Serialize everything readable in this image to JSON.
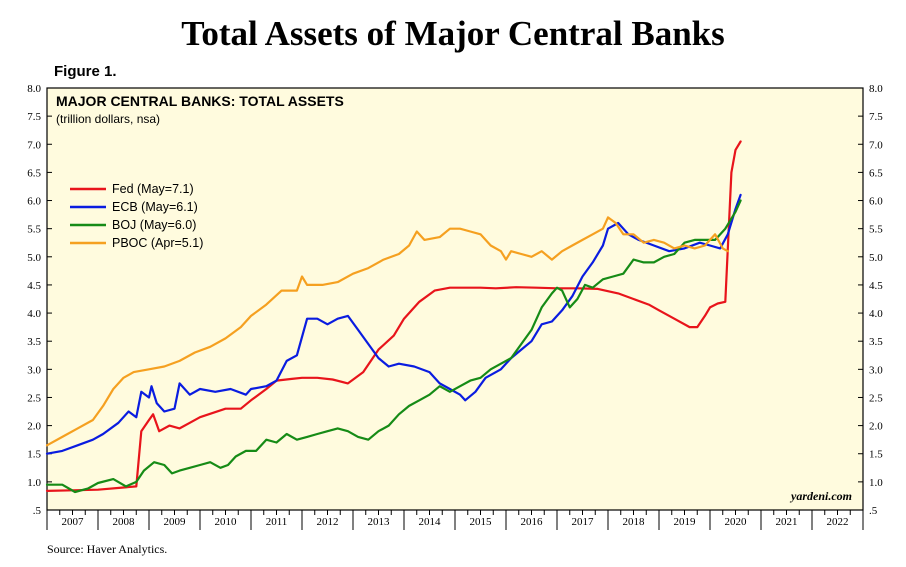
{
  "header": {
    "title": "Total Assets of Major Central Banks",
    "figure_label": "Figure 1.",
    "source": "Source: Haver Analytics."
  },
  "chart_data": {
    "type": "line",
    "title": "MAJOR CENTRAL BANKS: TOTAL ASSETS",
    "subtitle": "(trillion dollars, nsa)",
    "watermark": "yardeni.com",
    "xlabel": "",
    "ylabel": "",
    "xlim": [
      2007,
      2023
    ],
    "ylim": [
      0.5,
      8.0
    ],
    "y_ticks": [
      ".5",
      "1.0",
      "1.5",
      "2.0",
      "2.5",
      "3.0",
      "3.5",
      "4.0",
      "4.5",
      "5.0",
      "5.5",
      "6.0",
      "6.5",
      "7.0",
      "7.5",
      "8.0"
    ],
    "x_ticks": [
      "2007",
      "2008",
      "2009",
      "2010",
      "2011",
      "2012",
      "2013",
      "2014",
      "2015",
      "2016",
      "2017",
      "2018",
      "2019",
      "2020",
      "2021",
      "2022"
    ],
    "legend_position": "upper-left",
    "series": [
      {
        "name": "Fed (May=7.1)",
        "color": "#e8141b",
        "points": [
          [
            2007.0,
            0.84
          ],
          [
            2007.5,
            0.85
          ],
          [
            2008.0,
            0.86
          ],
          [
            2008.5,
            0.9
          ],
          [
            2008.75,
            0.92
          ],
          [
            2008.85,
            1.9
          ],
          [
            2009.0,
            2.1
          ],
          [
            2009.08,
            2.2
          ],
          [
            2009.2,
            1.9
          ],
          [
            2009.4,
            2.0
          ],
          [
            2009.6,
            1.95
          ],
          [
            2009.8,
            2.05
          ],
          [
            2010.0,
            2.15
          ],
          [
            2010.5,
            2.3
          ],
          [
            2010.8,
            2.3
          ],
          [
            2011.0,
            2.45
          ],
          [
            2011.3,
            2.65
          ],
          [
            2011.5,
            2.8
          ],
          [
            2011.8,
            2.83
          ],
          [
            2012.0,
            2.85
          ],
          [
            2012.3,
            2.85
          ],
          [
            2012.6,
            2.82
          ],
          [
            2012.9,
            2.75
          ],
          [
            2013.2,
            2.95
          ],
          [
            2013.5,
            3.35
          ],
          [
            2013.8,
            3.6
          ],
          [
            2014.0,
            3.9
          ],
          [
            2014.3,
            4.2
          ],
          [
            2014.6,
            4.4
          ],
          [
            2014.9,
            4.45
          ],
          [
            2015.2,
            4.45
          ],
          [
            2015.5,
            4.45
          ],
          [
            2015.8,
            4.44
          ],
          [
            2016.2,
            4.46
          ],
          [
            2016.6,
            4.45
          ],
          [
            2017.0,
            4.44
          ],
          [
            2017.4,
            4.44
          ],
          [
            2017.8,
            4.43
          ],
          [
            2018.2,
            4.35
          ],
          [
            2018.5,
            4.25
          ],
          [
            2018.8,
            4.15
          ],
          [
            2019.0,
            4.05
          ],
          [
            2019.3,
            3.9
          ],
          [
            2019.6,
            3.75
          ],
          [
            2019.75,
            3.75
          ],
          [
            2019.9,
            3.95
          ],
          [
            2020.0,
            4.1
          ],
          [
            2020.15,
            4.17
          ],
          [
            2020.3,
            4.2
          ],
          [
            2020.42,
            6.5
          ],
          [
            2020.5,
            6.9
          ],
          [
            2020.6,
            7.05
          ]
        ]
      },
      {
        "name": "ECB (May=6.1)",
        "color": "#0a1ce0",
        "points": [
          [
            2007.0,
            1.5
          ],
          [
            2007.3,
            1.55
          ],
          [
            2007.6,
            1.65
          ],
          [
            2007.9,
            1.75
          ],
          [
            2008.1,
            1.85
          ],
          [
            2008.4,
            2.05
          ],
          [
            2008.6,
            2.25
          ],
          [
            2008.75,
            2.15
          ],
          [
            2008.85,
            2.6
          ],
          [
            2009.0,
            2.5
          ],
          [
            2009.05,
            2.7
          ],
          [
            2009.15,
            2.4
          ],
          [
            2009.3,
            2.25
          ],
          [
            2009.5,
            2.3
          ],
          [
            2009.6,
            2.75
          ],
          [
            2009.8,
            2.55
          ],
          [
            2010.0,
            2.65
          ],
          [
            2010.3,
            2.6
          ],
          [
            2010.6,
            2.65
          ],
          [
            2010.9,
            2.55
          ],
          [
            2011.0,
            2.65
          ],
          [
            2011.3,
            2.7
          ],
          [
            2011.5,
            2.8
          ],
          [
            2011.7,
            3.15
          ],
          [
            2011.9,
            3.25
          ],
          [
            2012.1,
            3.9
          ],
          [
            2012.3,
            3.9
          ],
          [
            2012.5,
            3.8
          ],
          [
            2012.7,
            3.9
          ],
          [
            2012.9,
            3.95
          ],
          [
            2013.1,
            3.7
          ],
          [
            2013.3,
            3.45
          ],
          [
            2013.5,
            3.2
          ],
          [
            2013.7,
            3.05
          ],
          [
            2013.9,
            3.1
          ],
          [
            2014.2,
            3.05
          ],
          [
            2014.5,
            2.95
          ],
          [
            2014.7,
            2.75
          ],
          [
            2014.9,
            2.65
          ],
          [
            2015.1,
            2.55
          ],
          [
            2015.2,
            2.45
          ],
          [
            2015.4,
            2.6
          ],
          [
            2015.6,
            2.85
          ],
          [
            2015.9,
            3.0
          ],
          [
            2016.1,
            3.2
          ],
          [
            2016.3,
            3.35
          ],
          [
            2016.5,
            3.5
          ],
          [
            2016.7,
            3.8
          ],
          [
            2016.9,
            3.85
          ],
          [
            2017.1,
            4.05
          ],
          [
            2017.3,
            4.3
          ],
          [
            2017.5,
            4.65
          ],
          [
            2017.7,
            4.9
          ],
          [
            2017.9,
            5.2
          ],
          [
            2018.0,
            5.5
          ],
          [
            2018.2,
            5.6
          ],
          [
            2018.4,
            5.4
          ],
          [
            2018.6,
            5.3
          ],
          [
            2018.9,
            5.2
          ],
          [
            2019.2,
            5.1
          ],
          [
            2019.5,
            5.15
          ],
          [
            2019.8,
            5.25
          ],
          [
            2020.0,
            5.2
          ],
          [
            2020.2,
            5.15
          ],
          [
            2020.35,
            5.4
          ],
          [
            2020.5,
            5.85
          ],
          [
            2020.6,
            6.1
          ]
        ]
      },
      {
        "name": "BOJ (May=6.0)",
        "color": "#168b16",
        "points": [
          [
            2007.0,
            0.95
          ],
          [
            2007.3,
            0.95
          ],
          [
            2007.55,
            0.82
          ],
          [
            2007.8,
            0.88
          ],
          [
            2008.0,
            0.98
          ],
          [
            2008.3,
            1.05
          ],
          [
            2008.55,
            0.92
          ],
          [
            2008.75,
            1.0
          ],
          [
            2008.9,
            1.2
          ],
          [
            2009.1,
            1.35
          ],
          [
            2009.3,
            1.3
          ],
          [
            2009.45,
            1.15
          ],
          [
            2009.6,
            1.2
          ],
          [
            2009.8,
            1.25
          ],
          [
            2010.0,
            1.3
          ],
          [
            2010.2,
            1.35
          ],
          [
            2010.4,
            1.25
          ],
          [
            2010.55,
            1.3
          ],
          [
            2010.7,
            1.45
          ],
          [
            2010.9,
            1.55
          ],
          [
            2011.1,
            1.55
          ],
          [
            2011.3,
            1.75
          ],
          [
            2011.5,
            1.7
          ],
          [
            2011.7,
            1.85
          ],
          [
            2011.9,
            1.75
          ],
          [
            2012.1,
            1.8
          ],
          [
            2012.3,
            1.85
          ],
          [
            2012.5,
            1.9
          ],
          [
            2012.7,
            1.95
          ],
          [
            2012.9,
            1.9
          ],
          [
            2013.1,
            1.8
          ],
          [
            2013.3,
            1.75
          ],
          [
            2013.5,
            1.9
          ],
          [
            2013.7,
            2.0
          ],
          [
            2013.9,
            2.2
          ],
          [
            2014.1,
            2.35
          ],
          [
            2014.3,
            2.45
          ],
          [
            2014.5,
            2.55
          ],
          [
            2014.7,
            2.7
          ],
          [
            2014.9,
            2.6
          ],
          [
            2015.1,
            2.7
          ],
          [
            2015.3,
            2.8
          ],
          [
            2015.5,
            2.85
          ],
          [
            2015.7,
            3.0
          ],
          [
            2015.9,
            3.1
          ],
          [
            2016.1,
            3.2
          ],
          [
            2016.3,
            3.45
          ],
          [
            2016.5,
            3.7
          ],
          [
            2016.7,
            4.1
          ],
          [
            2016.9,
            4.35
          ],
          [
            2017.0,
            4.45
          ],
          [
            2017.1,
            4.4
          ],
          [
            2017.25,
            4.1
          ],
          [
            2017.4,
            4.25
          ],
          [
            2017.55,
            4.5
          ],
          [
            2017.7,
            4.45
          ],
          [
            2017.9,
            4.6
          ],
          [
            2018.1,
            4.65
          ],
          [
            2018.3,
            4.7
          ],
          [
            2018.5,
            4.95
          ],
          [
            2018.7,
            4.9
          ],
          [
            2018.9,
            4.9
          ],
          [
            2019.1,
            5.0
          ],
          [
            2019.3,
            5.05
          ],
          [
            2019.5,
            5.25
          ],
          [
            2019.7,
            5.3
          ],
          [
            2019.9,
            5.3
          ],
          [
            2020.1,
            5.3
          ],
          [
            2020.3,
            5.5
          ],
          [
            2020.5,
            5.8
          ],
          [
            2020.6,
            6.0
          ]
        ]
      },
      {
        "name": "PBOC (Apr=5.1)",
        "color": "#f5a020",
        "points": [
          [
            2007.0,
            1.65
          ],
          [
            2007.3,
            1.8
          ],
          [
            2007.6,
            1.95
          ],
          [
            2007.9,
            2.1
          ],
          [
            2008.1,
            2.35
          ],
          [
            2008.3,
            2.65
          ],
          [
            2008.5,
            2.85
          ],
          [
            2008.7,
            2.95
          ],
          [
            2009.0,
            3.0
          ],
          [
            2009.3,
            3.05
          ],
          [
            2009.6,
            3.15
          ],
          [
            2009.9,
            3.3
          ],
          [
            2010.2,
            3.4
          ],
          [
            2010.5,
            3.55
          ],
          [
            2010.8,
            3.75
          ],
          [
            2011.0,
            3.95
          ],
          [
            2011.3,
            4.15
          ],
          [
            2011.6,
            4.4
          ],
          [
            2011.9,
            4.4
          ],
          [
            2012.0,
            4.65
          ],
          [
            2012.1,
            4.5
          ],
          [
            2012.4,
            4.5
          ],
          [
            2012.7,
            4.55
          ],
          [
            2013.0,
            4.7
          ],
          [
            2013.3,
            4.8
          ],
          [
            2013.6,
            4.95
          ],
          [
            2013.9,
            5.05
          ],
          [
            2014.1,
            5.2
          ],
          [
            2014.25,
            5.45
          ],
          [
            2014.4,
            5.3
          ],
          [
            2014.7,
            5.35
          ],
          [
            2014.9,
            5.5
          ],
          [
            2015.1,
            5.5
          ],
          [
            2015.3,
            5.45
          ],
          [
            2015.5,
            5.4
          ],
          [
            2015.7,
            5.2
          ],
          [
            2015.9,
            5.1
          ],
          [
            2016.0,
            4.95
          ],
          [
            2016.1,
            5.1
          ],
          [
            2016.3,
            5.05
          ],
          [
            2016.5,
            5.0
          ],
          [
            2016.7,
            5.1
          ],
          [
            2016.9,
            4.95
          ],
          [
            2017.1,
            5.1
          ],
          [
            2017.3,
            5.2
          ],
          [
            2017.5,
            5.3
          ],
          [
            2017.7,
            5.4
          ],
          [
            2017.9,
            5.5
          ],
          [
            2018.0,
            5.7
          ],
          [
            2018.15,
            5.6
          ],
          [
            2018.3,
            5.4
          ],
          [
            2018.5,
            5.4
          ],
          [
            2018.7,
            5.25
          ],
          [
            2018.9,
            5.3
          ],
          [
            2019.1,
            5.25
          ],
          [
            2019.3,
            5.15
          ],
          [
            2019.5,
            5.2
          ],
          [
            2019.7,
            5.15
          ],
          [
            2019.9,
            5.2
          ],
          [
            2020.1,
            5.4
          ],
          [
            2020.25,
            5.15
          ],
          [
            2020.35,
            5.1
          ]
        ]
      }
    ]
  }
}
